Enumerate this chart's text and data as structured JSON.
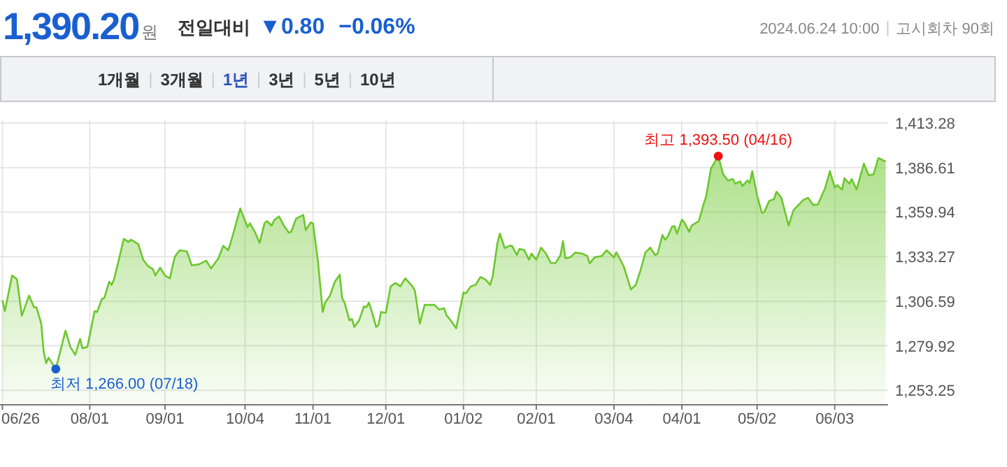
{
  "chart_data": {
    "type": "area",
    "title": "1,390.20",
    "annotations": [
      "원",
      "전일대비",
      "▼0.80",
      "−0.06%",
      "2024.06.24 10:00",
      "고시회차 90회",
      "1개월",
      "3개월",
      "1년",
      "3년",
      "5년",
      "10년",
      {
        "text": "최저 1,266.00 (07/18)",
        "x": "2023-07-18",
        "y": 1266
      },
      {
        "text": "최고 1,393.50 (04/16)",
        "x": "2024-04-16",
        "y": 1393.5
      }
    ],
    "x": [
      "2023-06-26",
      "2023-06-27",
      "2023-06-30",
      "2023-07-02",
      "2023-07-04",
      "2023-07-07",
      "2023-07-09",
      "2023-07-10",
      "2023-07-12",
      "2023-07-13",
      "2023-07-14",
      "2023-07-15",
      "2023-07-18",
      "2023-07-22",
      "2023-07-24",
      "2023-07-26",
      "2023-07-28",
      "2023-07-29",
      "2023-07-31",
      "2023-08-03",
      "2023-08-04",
      "2023-08-06",
      "2023-08-07",
      "2023-08-09",
      "2023-08-10",
      "2023-08-11",
      "2023-08-13",
      "2023-08-15",
      "2023-08-17",
      "2023-08-18",
      "2023-08-21",
      "2023-08-23",
      "2023-08-25",
      "2023-08-27",
      "2023-08-28",
      "2023-08-30",
      "2023-09-01",
      "2023-09-03",
      "2023-09-05",
      "2023-09-07",
      "2023-09-10",
      "2023-09-12",
      "2023-09-15",
      "2023-09-18",
      "2023-09-20",
      "2023-09-23",
      "2023-09-25",
      "2023-09-27",
      "2023-09-28",
      "2023-10-02",
      "2023-10-05",
      "2023-10-06",
      "2023-10-08",
      "2023-10-10",
      "2023-10-12",
      "2023-10-13",
      "2023-10-15",
      "2023-10-16",
      "2023-10-18",
      "2023-10-20",
      "2023-10-22",
      "2023-10-23",
      "2023-10-25",
      "2023-10-28",
      "2023-10-29",
      "2023-10-31",
      "2023-11-01",
      "2023-11-03",
      "2023-11-05",
      "2023-11-06",
      "2023-11-08",
      "2023-11-10",
      "2023-11-12",
      "2023-11-13",
      "2023-11-14",
      "2023-11-16",
      "2023-11-17",
      "2023-11-18",
      "2023-11-20",
      "2023-11-22",
      "2023-11-23",
      "2023-11-24",
      "2023-11-25",
      "2023-11-27",
      "2023-11-28",
      "2023-11-29",
      "2023-12-01",
      "2023-12-03",
      "2023-12-05",
      "2023-12-07",
      "2023-12-09",
      "2023-12-12",
      "2023-12-13",
      "2023-12-15",
      "2023-12-17",
      "2023-12-21",
      "2023-12-23",
      "2023-12-25",
      "2023-12-26",
      "2023-12-28",
      "2023-12-30",
      "2024-01-02",
      "2024-01-03",
      "2024-01-05",
      "2024-01-07",
      "2024-01-09",
      "2024-01-11",
      "2024-01-13",
      "2024-01-14",
      "2024-01-16",
      "2024-01-17",
      "2024-01-19",
      "2024-01-21",
      "2024-01-22",
      "2024-01-24",
      "2024-01-25",
      "2024-01-27",
      "2024-01-29",
      "2024-01-30",
      "2024-02-01",
      "2024-02-03",
      "2024-02-05",
      "2024-02-07",
      "2024-02-09",
      "2024-02-11",
      "2024-02-12",
      "2024-02-13",
      "2024-02-15",
      "2024-02-17",
      "2024-02-20",
      "2024-02-22",
      "2024-02-23",
      "2024-02-25",
      "2024-02-28",
      "2024-03-01",
      "2024-03-04",
      "2024-03-05",
      "2024-03-08",
      "2024-03-10",
      "2024-03-11",
      "2024-03-13",
      "2024-03-15",
      "2024-03-17",
      "2024-03-19",
      "2024-03-21",
      "2024-03-22",
      "2024-03-24",
      "2024-03-25",
      "2024-03-26",
      "2024-03-28",
      "2024-03-29",
      "2024-03-30",
      "2024-04-01",
      "2024-04-02",
      "2024-04-04",
      "2024-04-05",
      "2024-04-08",
      "2024-04-10",
      "2024-04-11",
      "2024-04-13",
      "2024-04-16",
      "2024-04-18",
      "2024-04-20",
      "2024-04-22",
      "2024-04-23",
      "2024-04-25",
      "2024-04-26",
      "2024-04-28",
      "2024-04-29",
      "2024-04-30",
      "2024-05-02",
      "2024-05-04",
      "2024-05-05",
      "2024-05-07",
      "2024-05-09",
      "2024-05-10",
      "2024-05-12",
      "2024-05-15",
      "2024-05-17",
      "2024-05-21",
      "2024-05-23",
      "2024-05-25",
      "2024-05-27",
      "2024-05-30",
      "2024-06-01",
      "2024-06-03",
      "2024-06-04",
      "2024-06-06",
      "2024-06-07",
      "2024-06-09",
      "2024-06-10",
      "2024-06-12",
      "2024-06-15",
      "2024-06-17",
      "2024-06-19",
      "2024-06-21",
      "2024-06-24"
    ],
    "series": [
      {
        "color": "#6cc72c",
        "values": [
          1307.2,
          1300.7,
          1322.0,
          1319.7,
          1297.9,
          1310.0,
          1303.0,
          1303.0,
          1293.2,
          1276.4,
          1269.5,
          1272.8,
          1266.0,
          1289.0,
          1279.2,
          1274.5,
          1284.0,
          1278.4,
          1279.2,
          1300.7,
          1300.1,
          1308.0,
          1308.5,
          1318.3,
          1316.4,
          1319.7,
          1331.5,
          1344.0,
          1342.1,
          1343.5,
          1340.7,
          1331.5,
          1327.6,
          1325.9,
          1322.0,
          1326.7,
          1322.0,
          1320.3,
          1333.1,
          1337.1,
          1336.5,
          1328.1,
          1328.7,
          1330.9,
          1326.2,
          1332.3,
          1339.8,
          1337.1,
          1341.2,
          1362.2,
          1351.0,
          1353.3,
          1348.2,
          1341.5,
          1353.3,
          1354.6,
          1351.9,
          1355.2,
          1357.4,
          1351.9,
          1347.7,
          1348.2,
          1356.0,
          1358.3,
          1349.1,
          1353.8,
          1353.3,
          1330.9,
          1300.2,
          1305.8,
          1310.0,
          1318.3,
          1322.5,
          1308.5,
          1305.8,
          1295.2,
          1296.0,
          1291.2,
          1295.2,
          1303.5,
          1303.0,
          1305.8,
          1301.6,
          1291.2,
          1292.4,
          1300.2,
          1299.6,
          1315.5,
          1317.5,
          1315.5,
          1320.3,
          1315.5,
          1312.8,
          1293.2,
          1304.4,
          1304.4,
          1301.6,
          1302.4,
          1298.2,
          1294.6,
          1290.4,
          1311.9,
          1311.3,
          1315.5,
          1316.4,
          1321.1,
          1319.7,
          1316.4,
          1321.1,
          1341.5,
          1347.1,
          1338.4,
          1339.8,
          1339.8,
          1334.3,
          1337.9,
          1337.3,
          1331.5,
          1335.1,
          1331.5,
          1338.7,
          1335.1,
          1329.5,
          1329.5,
          1334.3,
          1342.6,
          1332.3,
          1332.9,
          1335.7,
          1335.1,
          1333.7,
          1329.2,
          1332.9,
          1333.7,
          1337.1,
          1332.9,
          1335.9,
          1327.6,
          1318.3,
          1313.6,
          1316.4,
          1325.3,
          1335.9,
          1338.7,
          1334.3,
          1335.1,
          1346.3,
          1343.5,
          1344.9,
          1351.3,
          1351.6,
          1347.1,
          1355.5,
          1353.8,
          1348.2,
          1351.9,
          1354.6,
          1365.0,
          1369.4,
          1386.2,
          1393.5,
          1382.6,
          1378.9,
          1379.8,
          1377.0,
          1378.4,
          1375.6,
          1378.9,
          1377.5,
          1384.5,
          1370.0,
          1359.4,
          1360.2,
          1366.7,
          1367.8,
          1372.2,
          1368.6,
          1351.9,
          1361.1,
          1367.2,
          1368.6,
          1364.4,
          1364.4,
          1374.2,
          1384.5,
          1374.8,
          1376.2,
          1373.4,
          1380.3,
          1377.0,
          1379.8,
          1373.4,
          1389.0,
          1382.0,
          1382.6,
          1392.4,
          1390.2
        ]
      }
    ],
    "xlim": [
      "2023-06-25",
      "2024-06-25"
    ],
    "xticks": [
      {
        "value": "2023-06-26",
        "label": "06/26"
      },
      {
        "value": "2023-08-01",
        "label": "08/01"
      },
      {
        "value": "2023-09-01",
        "label": "09/01"
      },
      {
        "value": "2023-10-04",
        "label": "10/04"
      },
      {
        "value": "2023-11-01",
        "label": "11/01"
      },
      {
        "value": "2023-12-01",
        "label": "12/01"
      },
      {
        "value": "2024-01-02",
        "label": "01/02"
      },
      {
        "value": "2024-02-01",
        "label": "02/01"
      },
      {
        "value": "2024-03-04",
        "label": "03/04"
      },
      {
        "value": "2024-04-01",
        "label": "04/01"
      },
      {
        "value": "2024-05-02",
        "label": "05/02"
      },
      {
        "value": "2024-06-03",
        "label": "06/03"
      }
    ],
    "ylim": [
      1245,
      1415
    ],
    "yticks": [
      {
        "value": 1253.25,
        "label": "1,253.25"
      },
      {
        "value": 1279.92,
        "label": "1,279.92"
      },
      {
        "value": 1306.59,
        "label": "1,306.59"
      },
      {
        "value": 1333.27,
        "label": "1,333.27"
      },
      {
        "value": 1359.94,
        "label": "1,359.94"
      },
      {
        "value": 1386.61,
        "label": "1,386.61"
      },
      {
        "value": 1413.28,
        "label": "1,413.28"
      }
    ],
    "grid": true
  }
}
